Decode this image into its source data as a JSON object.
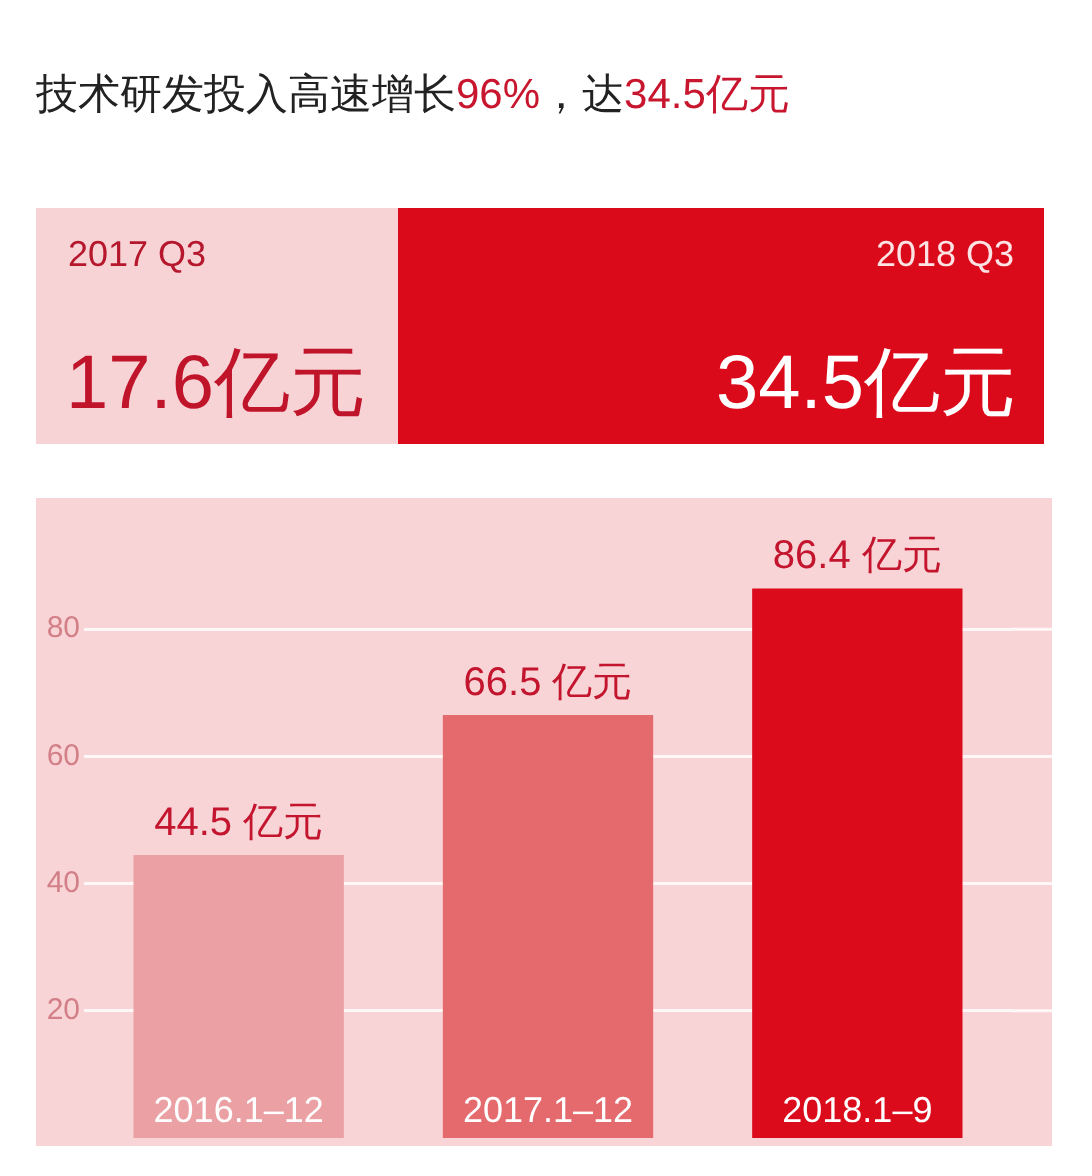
{
  "chart_data": [
    {
      "type": "other",
      "title": "技术研发投入高速增长96%，达34.5亿元",
      "annotations": [
        "2017 Q3",
        "17.6亿元",
        "2018 Q3",
        "34.5亿元"
      ]
    },
    {
      "type": "bar",
      "categories": [
        "2016.1–12",
        "2017.1–12",
        "2018.1–9"
      ],
      "values": [
        44.5,
        66.5,
        86.4
      ],
      "colors": [
        "#eba1a4",
        "#e56a6e",
        "#db0b1c"
      ],
      "value_labels": [
        "44.5 亿元",
        "66.5 亿元",
        "86.4 亿元"
      ],
      "ylim": [
        0,
        100
      ],
      "yticks": [
        20,
        40,
        60,
        80
      ],
      "grid": "y"
    }
  ]
}
